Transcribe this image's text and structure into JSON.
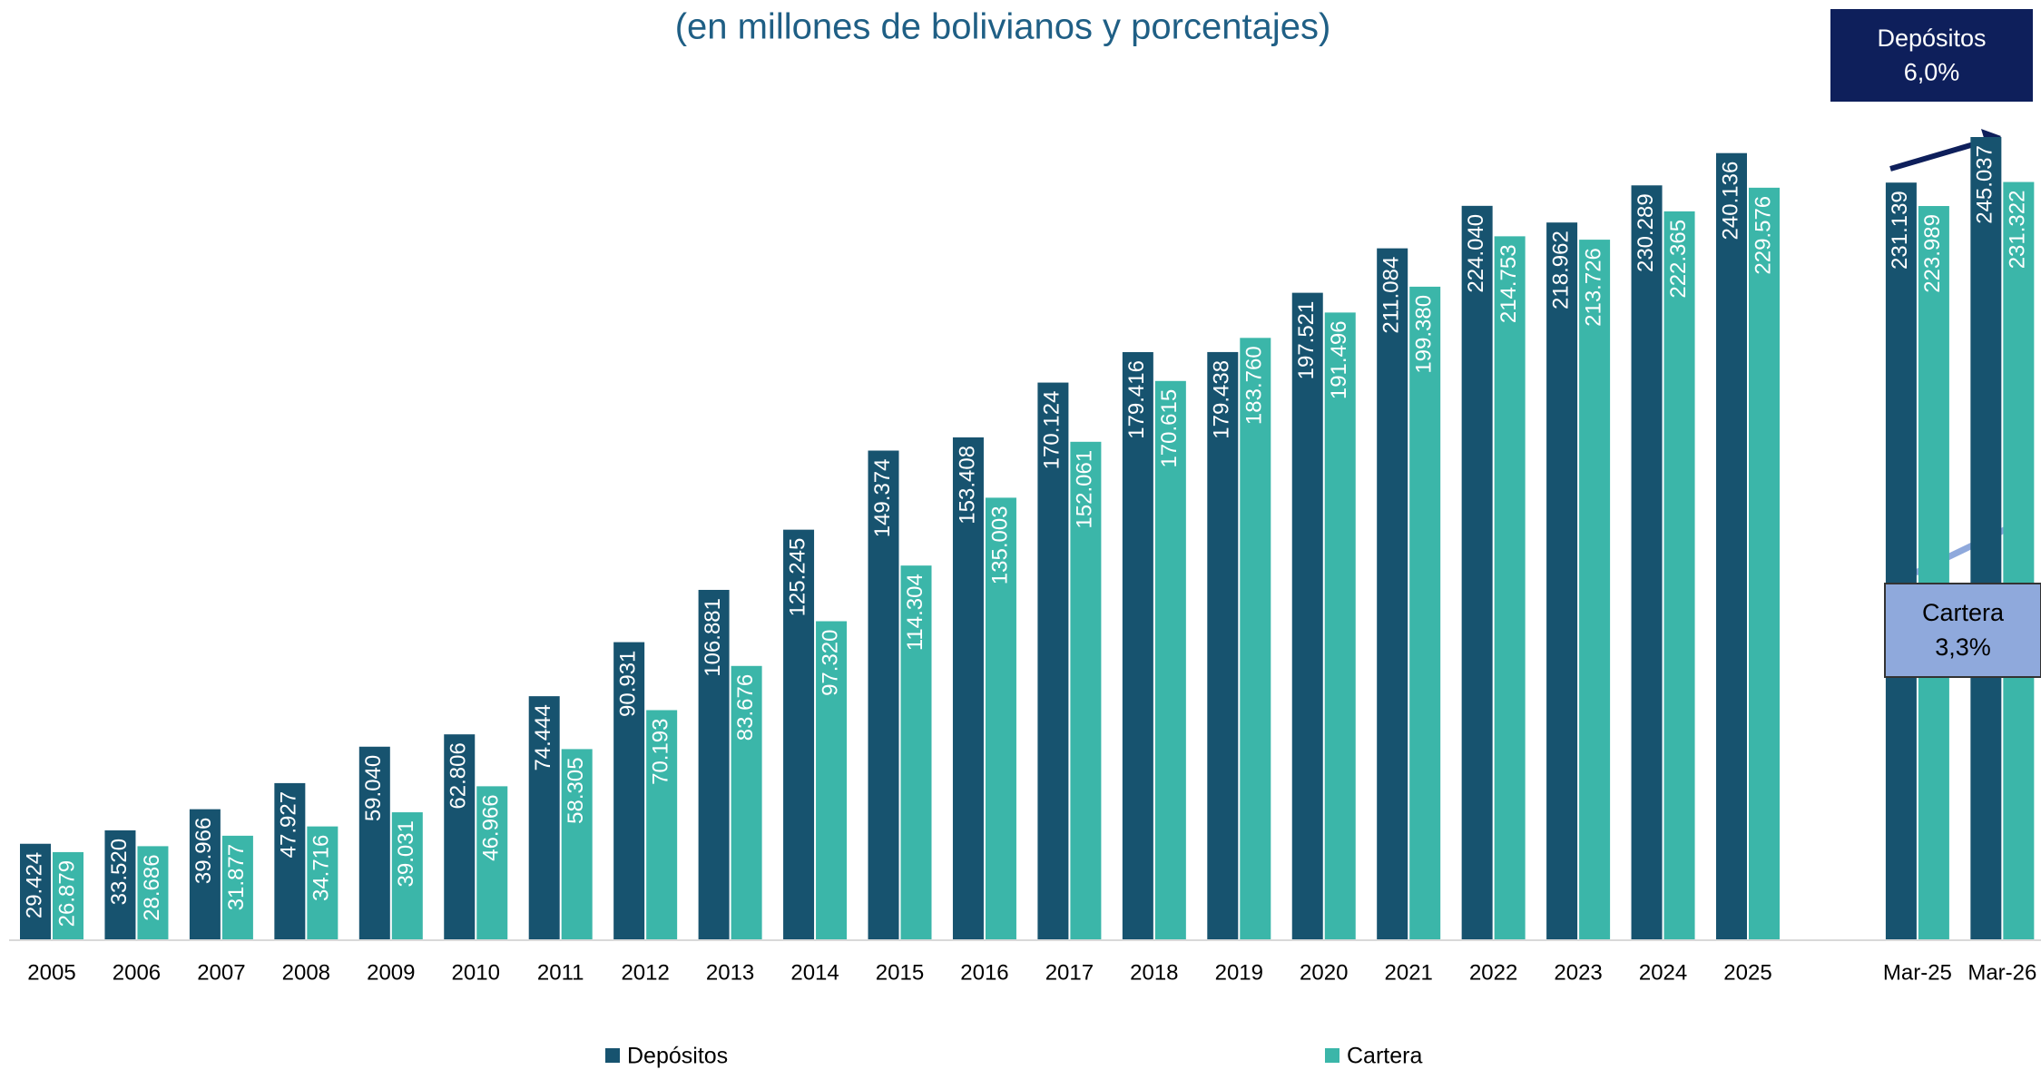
{
  "chart_data": {
    "type": "bar",
    "title": "(en millones de bolivianos y porcentajes)",
    "categories": [
      "2005",
      "2006",
      "2007",
      "2008",
      "2009",
      "2010",
      "2011",
      "2012",
      "2013",
      "2014",
      "2015",
      "2016",
      "2017",
      "2018",
      "2019",
      "2020",
      "2021",
      "2022",
      "2023",
      "2024",
      "2025",
      null,
      "Mar-25",
      "Mar-26"
    ],
    "series": [
      {
        "name": "Depósitos",
        "color": "#17536f",
        "values": [
          29424,
          33520,
          39966,
          47927,
          59040,
          62806,
          74444,
          90931,
          106881,
          125245,
          149374,
          153408,
          170124,
          179416,
          179438,
          197521,
          211084,
          224040,
          218962,
          230289,
          240136,
          null,
          231139,
          245037
        ],
        "value_labels": [
          "29.424",
          "33.520",
          "39.966",
          "47.927",
          "59.040",
          "62.806",
          "74.444",
          "90.931",
          "106.881",
          "125.245",
          "149.374",
          "153.408",
          "170.124",
          "179.416",
          "179.438",
          "197.521",
          "211.084",
          "224.040",
          "218.962",
          "230.289",
          "240.136",
          null,
          "231.139",
          "245.037"
        ]
      },
      {
        "name": "Cartera",
        "color": "#3bb6a9",
        "values": [
          26879,
          28686,
          31877,
          34716,
          39031,
          46966,
          58305,
          70193,
          83676,
          97320,
          114304,
          135003,
          152061,
          170615,
          183760,
          191496,
          199380,
          214753,
          213726,
          222365,
          229576,
          null,
          223989,
          231322
        ],
        "value_labels": [
          "26.879",
          "28.686",
          "31.877",
          "34.716",
          "39.031",
          "46.966",
          "58.305",
          "70.193",
          "83.676",
          "97.320",
          "114.304",
          "135.003",
          "152.061",
          "170.615",
          "183.760",
          "191.496",
          "199.380",
          "214.753",
          "213.726",
          "222.365",
          "229.576",
          null,
          "223.989",
          "231.322"
        ]
      }
    ],
    "annotations": [
      {
        "label": "Depósitos",
        "value": "6,0%",
        "color": "#0e1f5b"
      },
      {
        "label": "Cartera",
        "value": "3,3%",
        "color": "#8fa9dc"
      }
    ],
    "legend": "bottom"
  }
}
